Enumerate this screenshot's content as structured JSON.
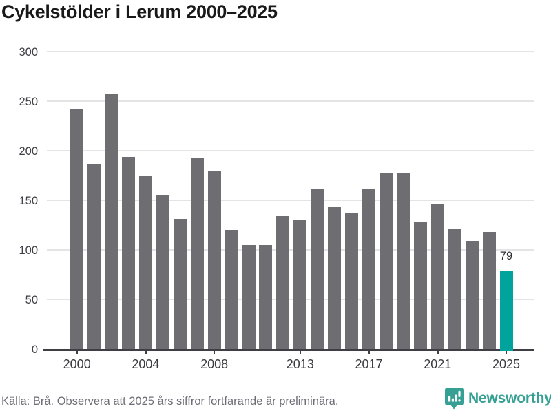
{
  "title": "Cykelstölder i Lerum 2000–2025",
  "chart_data": {
    "type": "bar",
    "title": "Cykelstölder i Lerum 2000–2025",
    "categories": [
      2000,
      2001,
      2002,
      2003,
      2004,
      2005,
      2006,
      2007,
      2008,
      2009,
      2010,
      2011,
      2012,
      2013,
      2014,
      2015,
      2016,
      2017,
      2018,
      2019,
      2020,
      2021,
      2022,
      2023,
      2024,
      2025
    ],
    "values": [
      242,
      187,
      257,
      194,
      175,
      155,
      131,
      193,
      179,
      120,
      105,
      105,
      134,
      130,
      162,
      143,
      137,
      161,
      177,
      178,
      128,
      146,
      121,
      109,
      118,
      79
    ],
    "xlabel": "",
    "ylabel": "",
    "ylim": [
      0,
      300
    ],
    "yticks": [
      0,
      50,
      100,
      150,
      200,
      250,
      300
    ],
    "xticks": [
      2000,
      2004,
      2008,
      2013,
      2017,
      2021,
      2025
    ],
    "grid": true,
    "legend": false,
    "bar_color": "#6d6d72",
    "highlight_color": "#00a49c",
    "highlight_index": 25,
    "highlight_label": "79"
  },
  "footer": {
    "source_note": "Källa: Brå. Observera att 2025 års siffror fortfarande är preliminära.",
    "brand": "Newsworthy",
    "brand_color": "#35a093"
  }
}
